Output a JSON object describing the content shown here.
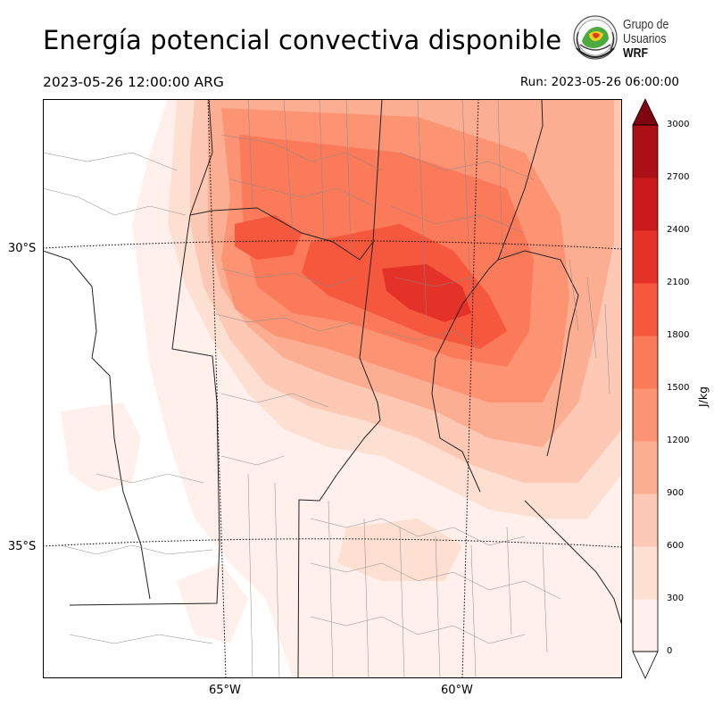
{
  "header": {
    "title": "Energía potencial convectiva disponible",
    "valid_time": "2023-05-26 12:00:00 ARG",
    "run_time": "Run: 2023-05-26 06:00:00"
  },
  "logo": {
    "line1": "Grupo de",
    "line2": "Usuarios",
    "line3": "WRF"
  },
  "map": {
    "lat_labels": [
      "30°S",
      "35°S"
    ],
    "lon_labels": [
      "65°W",
      "60°W"
    ],
    "field": "CAPE"
  },
  "colorbar": {
    "unit": "J/kg",
    "ticks": [
      "0",
      "300",
      "600",
      "900",
      "1200",
      "1500",
      "1800",
      "2100",
      "2400",
      "2700",
      "3000"
    ],
    "levels": [
      0,
      150,
      300,
      450,
      600,
      750,
      900,
      1050,
      1200,
      1350,
      1500,
      1650,
      1800,
      1950,
      2100,
      2250,
      2400,
      2550,
      2700,
      2850,
      3000
    ],
    "colors": [
      "#fff0eb",
      "#fee0d2",
      "#fdc9b4",
      "#fcae92",
      "#fc9474",
      "#fb7a5a",
      "#f6583e",
      "#e53228",
      "#ca1a1c",
      "#aa1016",
      "#7f0510"
    ],
    "extend": "both"
  }
}
